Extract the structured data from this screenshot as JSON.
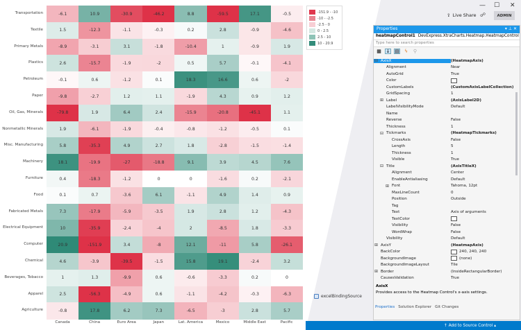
{
  "chart_data": {
    "type": "heatmap",
    "x_categories": [
      "Canada",
      "China",
      "Euro Area",
      "Japan",
      "Lat. America",
      "Mexico",
      "Middle East",
      "Pacific"
    ],
    "y_categories": [
      "Transportation",
      "Textile",
      "Primary Metals",
      "Plastics",
      "Petroleum",
      "Paper",
      "Oil, Gas, Minerals",
      "Nonmetallic Minerals",
      "Misc. Manufacturing",
      "Machinery",
      "Furniture",
      "Food",
      "Fabricated Metals",
      "Electrical Equipment",
      "Computer",
      "Chemical",
      "Beverages, Tobacco",
      "Apparel",
      "Agriculture"
    ],
    "values": [
      [
        -6.1,
        10.9,
        -30.9,
        -46.2,
        8.8,
        -59.5,
        17.1,
        -0.5
      ],
      [
        1.5,
        -12.3,
        -1.1,
        -0.3,
        0.2,
        2.8,
        -0.9,
        -4.6
      ],
      [
        -8.9,
        -3.1,
        3.1,
        -1.8,
        -10.4,
        1,
        -0.9,
        1.9
      ],
      [
        2.6,
        -15.7,
        -1.9,
        -2,
        0.5,
        5.7,
        -0.1,
        -4.1
      ],
      [
        -0.1,
        0.6,
        -1.2,
        0.1,
        18.3,
        16.6,
        0.6,
        -2
      ],
      [
        -9.8,
        -2.7,
        1.2,
        1.1,
        -1.9,
        4.3,
        0.9,
        1.2
      ],
      [
        -79.8,
        1.9,
        6.4,
        2.4,
        -15.9,
        -20.8,
        -45.1,
        1.1
      ],
      [
        1.9,
        -6.1,
        -1.9,
        -0.4,
        -0.8,
        -1.2,
        -0.5,
        0.1
      ],
      [
        5.8,
        -35.3,
        4.9,
        2.7,
        1.8,
        -2.8,
        -1.5,
        -1.4
      ],
      [
        18.1,
        -19.9,
        -27,
        -18.8,
        9.1,
        3.9,
        4.5,
        7.6
      ],
      [
        0.4,
        -18.3,
        -1.2,
        0,
        0,
        -1.6,
        0.2,
        -2.1
      ],
      [
        0.1,
        0.7,
        -3.6,
        6.1,
        -1.1,
        4.9,
        1.4,
        0.9
      ],
      [
        7.3,
        -17.9,
        -5.9,
        -3.5,
        1.9,
        2.8,
        1.2,
        -4.3
      ],
      [
        10,
        -35.9,
        -2.4,
        -4,
        2,
        -8.5,
        1.8,
        -3.3
      ],
      [
        20.9,
        -151.9,
        3.4,
        -8,
        12.1,
        -11,
        5.8,
        -26.1
      ],
      [
        4.6,
        -3.9,
        -39.5,
        -1.5,
        15.8,
        19.1,
        -2.4,
        3.2
      ],
      [
        1,
        1.3,
        -9.9,
        0.6,
        -0.6,
        -3.3,
        0.2,
        0
      ],
      [
        2.5,
        -56.3,
        -4.9,
        0.6,
        -1.1,
        -4.2,
        -0.3,
        -6.3
      ],
      [
        -0.8,
        17.8,
        6.2,
        7.3,
        -6.5,
        -3,
        2.8,
        5.7
      ]
    ],
    "legend": [
      {
        "label": "-151.9 - -10",
        "color": "#e0384e"
      },
      {
        "label": "-10 - -2.5",
        "color": "#e98390"
      },
      {
        "label": "-2.5 - 0",
        "color": "#f7ced4"
      },
      {
        "label": "0 - 2.5",
        "color": "#d5e8e2"
      },
      {
        "label": "2.5 - 10",
        "color": "#8ec3b6"
      },
      {
        "label": "10 - 20.9",
        "color": "#338c7a"
      }
    ],
    "legend_position": "top-right"
  },
  "binding_source": "excelBindingSource",
  "titlebar": {
    "live_share": "Live Share",
    "admin": "ADMIN",
    "minimize": "—",
    "maximize": "☐",
    "close": "✕"
  },
  "properties": {
    "title": "Properties",
    "title_buttons": "▾ ⊥ ✕",
    "object_name": "heatmapControl1",
    "object_type": "DevExpress.XtraCharts.Heatmap.HeatmapControl",
    "search_placeholder": "Type here to search properties",
    "rows": [
      {
        "name": "AxisX",
        "value": "(HeatmapAxis)",
        "bold": true,
        "toggle": "⊟",
        "level": 0,
        "selected": true
      },
      {
        "name": "Alignment",
        "value": "Near",
        "level": 1
      },
      {
        "name": "AutoGrid",
        "value": "True",
        "level": 1
      },
      {
        "name": "Color",
        "value": "",
        "swatch": true,
        "level": 1
      },
      {
        "name": "CustomLabels",
        "value": "(CustomAxisLabelCollection)",
        "bold": true,
        "level": 1
      },
      {
        "name": "GridSpacing",
        "value": "1",
        "level": 1
      },
      {
        "name": "Label",
        "value": "(AxisLabel2D)",
        "bold": true,
        "toggle": "⊞",
        "level": 1
      },
      {
        "name": "LabelVisibilityMode",
        "value": "Default",
        "level": 1
      },
      {
        "name": "Name",
        "value": "",
        "level": 1
      },
      {
        "name": "Reverse",
        "value": "False",
        "level": 1
      },
      {
        "name": "Thickness",
        "value": "1",
        "level": 1
      },
      {
        "name": "Tickmarks",
        "value": "(HeatmapTickmarks)",
        "bold": true,
        "toggle": "⊟",
        "level": 1
      },
      {
        "name": "CrossAxis",
        "value": "False",
        "level": 2
      },
      {
        "name": "Length",
        "value": "5",
        "level": 2
      },
      {
        "name": "Thickness",
        "value": "1",
        "level": 2
      },
      {
        "name": "Visible",
        "value": "True",
        "level": 2
      },
      {
        "name": "Title",
        "value": "(AxisTitleX)",
        "bold": true,
        "toggle": "⊟",
        "level": 1
      },
      {
        "name": "Alignment",
        "value": "Center",
        "level": 2
      },
      {
        "name": "EnableAntialiasing",
        "value": "Default",
        "level": 2
      },
      {
        "name": "Font",
        "value": "Tahoma, 12pt",
        "toggle": "⊞",
        "level": 2
      },
      {
        "name": "MaxLineCount",
        "value": "0",
        "level": 2
      },
      {
        "name": "Position",
        "value": "Outside",
        "level": 2
      },
      {
        "name": "Tag",
        "value": "",
        "level": 2
      },
      {
        "name": "Text",
        "value": "Axis of arguments",
        "level": 2
      },
      {
        "name": "TextColor",
        "value": "",
        "swatch": true,
        "level": 2
      },
      {
        "name": "Visibility",
        "value": "False",
        "level": 2
      },
      {
        "name": "WordWrap",
        "value": "False",
        "level": 2
      },
      {
        "name": "Visibility",
        "value": "Default",
        "level": 1
      },
      {
        "name": "AxisY",
        "value": "(HeatmapAxis)",
        "bold": true,
        "toggle": "⊞",
        "level": 0
      },
      {
        "name": "BackColor",
        "value": "240, 240, 240",
        "swatch": true,
        "level": 0
      },
      {
        "name": "BackgroundImage",
        "value": "(none)",
        "swatch": true,
        "level": 0
      },
      {
        "name": "BackgroundImageLayout",
        "value": "Tile",
        "level": 0
      },
      {
        "name": "Border",
        "value": "(InsideRectangularBorder)",
        "toggle": "⊞",
        "level": 0
      },
      {
        "name": "CausesValidation",
        "value": "True",
        "level": 0
      }
    ],
    "description_title": "AxisX",
    "description_text": "Provides access to the Heatmap Control's x-axis settings.",
    "tabs": [
      "Properties",
      "Solution Explorer",
      "Git Changes"
    ]
  },
  "status_bar": {
    "source_control": "↑  Add to Source Control  ▴"
  }
}
